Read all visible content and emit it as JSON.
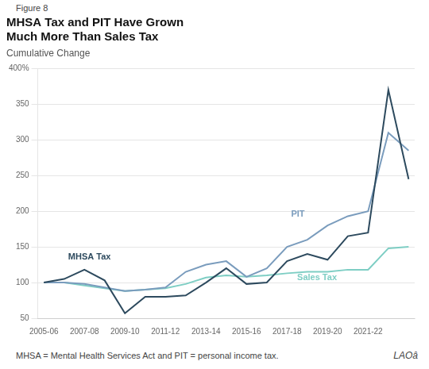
{
  "chart_data": {
    "type": "line",
    "figure_label": "Figure 8",
    "title": "MHSA Tax and PIT Have Grown\nMuch More Than Sales Tax",
    "subtitle": "Cumulative Change",
    "footnote": "MHSA = Mental Health Services Act and PIT = personal income tax.",
    "logo": "LAOâ",
    "x": [
      0,
      1,
      2,
      3,
      4,
      5,
      6,
      7,
      8,
      9,
      10,
      11,
      12,
      13,
      14,
      15,
      16,
      17,
      18
    ],
    "series": [
      {
        "name": "MHSA Tax",
        "color": "#2d4a5e",
        "values": [
          100,
          105,
          118,
          103,
          57,
          80,
          80,
          82,
          100,
          120,
          98,
          100,
          130,
          140,
          132,
          165,
          170,
          370,
          245
        ]
      },
      {
        "name": "PIT",
        "color": "#7a9cbd",
        "values": [
          100,
          100,
          98,
          93,
          88,
          90,
          93,
          115,
          125,
          130,
          108,
          120,
          150,
          160,
          180,
          193,
          200,
          310,
          285
        ]
      },
      {
        "name": "Sales Tax",
        "color": "#7ecec4",
        "values": [
          100,
          100,
          96,
          92,
          88,
          90,
          92,
          98,
          107,
          110,
          108,
          110,
          113,
          115,
          115,
          118,
          118,
          148,
          150
        ]
      }
    ],
    "xlim": [
      -0.3,
      18.3
    ],
    "xticks": [
      {
        "value": 0,
        "label": "2005-06"
      },
      {
        "value": 2,
        "label": "2007-08"
      },
      {
        "value": 4,
        "label": "2009-10"
      },
      {
        "value": 6,
        "label": "2011-12"
      },
      {
        "value": 8,
        "label": "2013-14"
      },
      {
        "value": 10,
        "label": "2015-16"
      },
      {
        "value": 12,
        "label": "2017-18"
      },
      {
        "value": 14,
        "label": "2019-20"
      },
      {
        "value": 16,
        "label": "2021-22"
      }
    ],
    "ylim": [
      50,
      400
    ],
    "yticks": [
      50,
      100,
      150,
      200,
      250,
      300,
      350,
      {
        "value": 400,
        "label": "400%"
      }
    ],
    "grid": true,
    "annotations": [
      {
        "text": "MHSA Tax",
        "x": 1.2,
        "y": 136,
        "color": "#2d4a5e"
      },
      {
        "text": "PIT",
        "x": 12.2,
        "y": 196,
        "color": "#7a9cbd"
      },
      {
        "text": "Sales Tax",
        "x": 12.5,
        "y": 107,
        "color": "#7ecec4"
      }
    ]
  }
}
